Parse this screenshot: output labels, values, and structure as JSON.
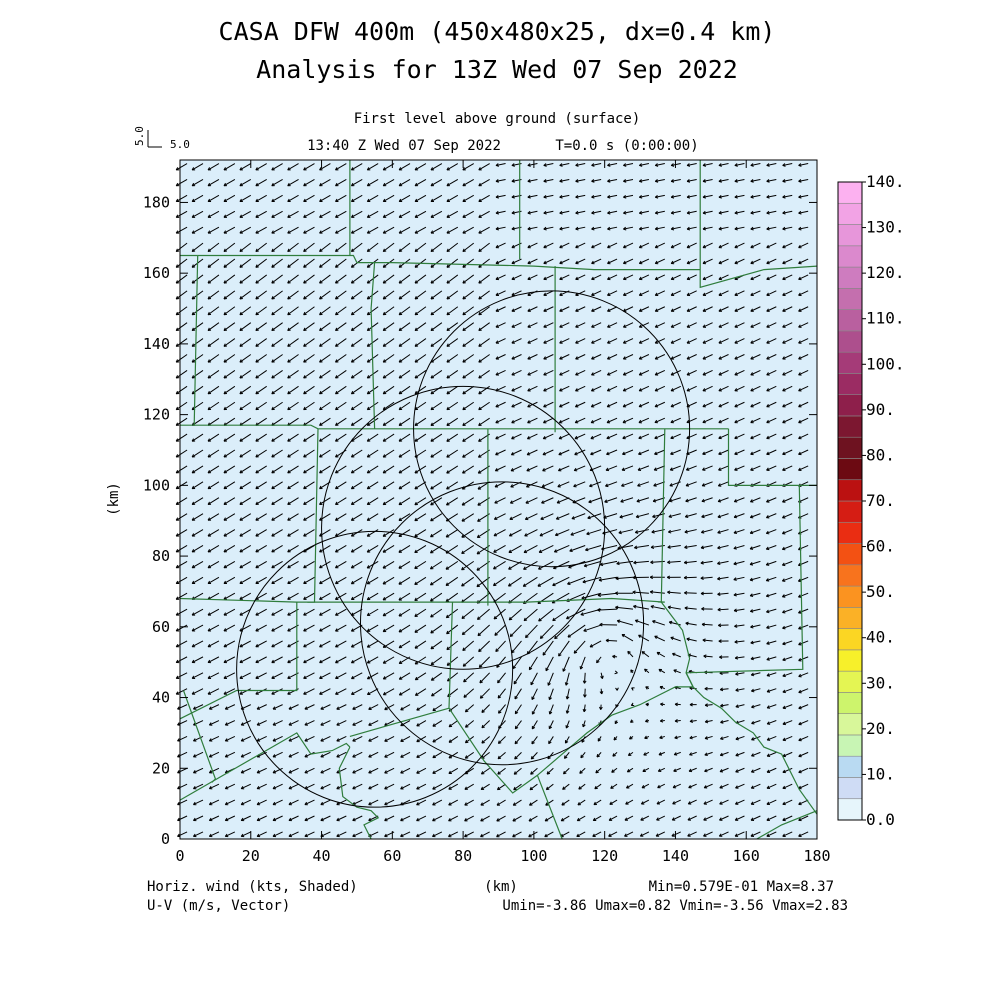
{
  "chart_data": {
    "type": "vector-field",
    "title": "CASA DFW 400m (450x480x25, dx=0.4 km)",
    "subtitle": "Analysis for 13Z Wed 07 Sep 2022",
    "level_label": "First level above ground (surface)",
    "time_label": "13:40 Z Wed 07 Sep 2022",
    "time_offset": "T=0.0 s (0:00:00)",
    "reference_vector": {
      "label_x": "5.0",
      "label_y": "5.0",
      "value_ms": 5.0
    },
    "xlabel": "(km)",
    "ylabel": "(km)",
    "xlim": [
      0,
      180
    ],
    "ylim": [
      0,
      192
    ],
    "x_ticks": [
      0,
      20,
      40,
      60,
      80,
      100,
      120,
      140,
      160,
      180
    ],
    "y_ticks": [
      0,
      20,
      40,
      60,
      80,
      100,
      120,
      140,
      160,
      180
    ],
    "grid": false,
    "colorbar": {
      "levels": [
        "0.0",
        "10.",
        "20.",
        "30.",
        "40.",
        "50.",
        "60.",
        "70.",
        "80.",
        "90.",
        "100.",
        "110.",
        "120.",
        "130.",
        "140."
      ],
      "colors": [
        "#e6f5fb",
        "#cfdcf5",
        "#b9daf2",
        "#c8f5b4",
        "#d8f79a",
        "#cdf46c",
        "#e4f553",
        "#f7f02a",
        "#fbd623",
        "#fbb126",
        "#fb9320",
        "#f8731d",
        "#f35113",
        "#ea2d12",
        "#d51d14",
        "#bb1111",
        "#6c0a12",
        "#6e1220",
        "#7c1730",
        "#8e1f4b",
        "#9b2c63",
        "#a53b78",
        "#ad4f8d",
        "#b9609f",
        "#c46fae",
        "#ce7cbf",
        "#db89cd",
        "#e796da",
        "#f2a3e5",
        "#fcb1f0"
      ],
      "field_color": "#dbeefa"
    },
    "range_rings_km": [
      {
        "cx": 55,
        "cy": 48,
        "r": 39
      },
      {
        "cx": 80,
        "cy": 88,
        "r": 40
      },
      {
        "cx": 91,
        "cy": 61,
        "r": 40
      },
      {
        "cx": 105,
        "cy": 116,
        "r": 39
      }
    ],
    "stats": {
      "left_line1": "Horiz. wind (kts, Shaded)",
      "left_line2": "U-V (m/s, Vector)",
      "center": "(km)",
      "right_line1": "Min=0.579E-01 Max=8.37",
      "right_line2": "Umin=-3.86 Umax=0.82 Vmin=-3.56 Vmax=2.83",
      "min": 0.0579,
      "max": 8.37,
      "umin": -3.86,
      "umax": 0.82,
      "vmin": -3.56,
      "vmax": 2.83
    },
    "wind_field": {
      "note": "",
      "background_u": -3.0,
      "background_v": -1.4,
      "vortex": {
        "x": 120,
        "y": 55,
        "strength": 2.6,
        "radius": 35
      },
      "spacing_km": 4.5
    },
    "county_lines_km": [
      [
        [
          0,
          117
        ],
        [
          37,
          117
        ],
        [
          39,
          116
        ],
        [
          80,
          116
        ],
        [
          137,
          116
        ],
        [
          155,
          116
        ]
      ],
      [
        [
          5,
          165
        ],
        [
          49,
          165
        ],
        [
          50,
          163
        ],
        [
          60,
          163
        ],
        [
          100,
          162
        ],
        [
          117,
          161
        ],
        [
          140,
          161
        ],
        [
          147,
          161
        ]
      ],
      [
        [
          0,
          165
        ],
        [
          5,
          165
        ]
      ],
      [
        [
          147,
          192
        ],
        [
          147,
          156
        ],
        [
          165,
          161
        ],
        [
          180,
          162
        ]
      ],
      [
        [
          48,
          192
        ],
        [
          48,
          165
        ]
      ],
      [
        [
          96,
          192
        ],
        [
          96,
          164
        ]
      ],
      [
        [
          55,
          163
        ],
        [
          54,
          150
        ],
        [
          55,
          116
        ]
      ],
      [
        [
          106,
          162
        ],
        [
          106,
          115
        ]
      ],
      [
        [
          5,
          165
        ],
        [
          4,
          117
        ]
      ],
      [
        [
          39,
          116
        ],
        [
          38,
          67
        ],
        [
          36,
          67
        ]
      ],
      [
        [
          0,
          68
        ],
        [
          33,
          67
        ],
        [
          77,
          67
        ],
        [
          98,
          67
        ],
        [
          122,
          68
        ],
        [
          137,
          67
        ],
        [
          135,
          67
        ]
      ],
      [
        [
          137,
          116
        ],
        [
          136,
          67
        ]
      ],
      [
        [
          155,
          116
        ],
        [
          155,
          100
        ],
        [
          175,
          100
        ],
        [
          176,
          48
        ],
        [
          143,
          47
        ]
      ],
      [
        [
          175,
          100
        ],
        [
          180,
          100
        ]
      ],
      [
        [
          87,
          116
        ],
        [
          87,
          66
        ]
      ],
      [
        [
          136,
          67
        ],
        [
          142,
          59
        ],
        [
          144,
          51
        ],
        [
          143,
          47
        ],
        [
          145,
          43
        ]
      ],
      [
        [
          143,
          47
        ],
        [
          145,
          43
        ],
        [
          148,
          40
        ],
        [
          153,
          37
        ],
        [
          157,
          33
        ],
        [
          162,
          30
        ],
        [
          165,
          26
        ],
        [
          170,
          24
        ],
        [
          172,
          20
        ],
        [
          175,
          14
        ],
        [
          180,
          7
        ]
      ],
      [
        [
          33,
          67
        ],
        [
          33,
          42
        ],
        [
          16,
          42
        ],
        [
          0,
          34
        ]
      ],
      [
        [
          0,
          11
        ],
        [
          33,
          30
        ],
        [
          37,
          24
        ],
        [
          43,
          25
        ],
        [
          47,
          27
        ],
        [
          48,
          26
        ]
      ],
      [
        [
          77,
          67
        ],
        [
          76,
          37
        ],
        [
          48,
          29
        ]
      ],
      [
        [
          76,
          37
        ],
        [
          86,
          22
        ],
        [
          94,
          13
        ],
        [
          101,
          18
        ],
        [
          108,
          24
        ],
        [
          115,
          30
        ],
        [
          122,
          35
        ],
        [
          130,
          38
        ],
        [
          140,
          43
        ],
        [
          145,
          43
        ]
      ],
      [
        [
          48,
          26
        ],
        [
          45,
          20
        ],
        [
          46,
          12
        ],
        [
          50,
          9
        ],
        [
          54,
          8
        ],
        [
          56,
          6
        ],
        [
          52,
          4
        ],
        [
          54,
          0
        ]
      ],
      [
        [
          1,
          42
        ],
        [
          10,
          17
        ],
        [
          9,
          16
        ]
      ],
      [
        [
          101,
          18
        ],
        [
          108,
          0
        ]
      ],
      [
        [
          163,
          0
        ],
        [
          170,
          4
        ],
        [
          180,
          8
        ]
      ]
    ]
  }
}
